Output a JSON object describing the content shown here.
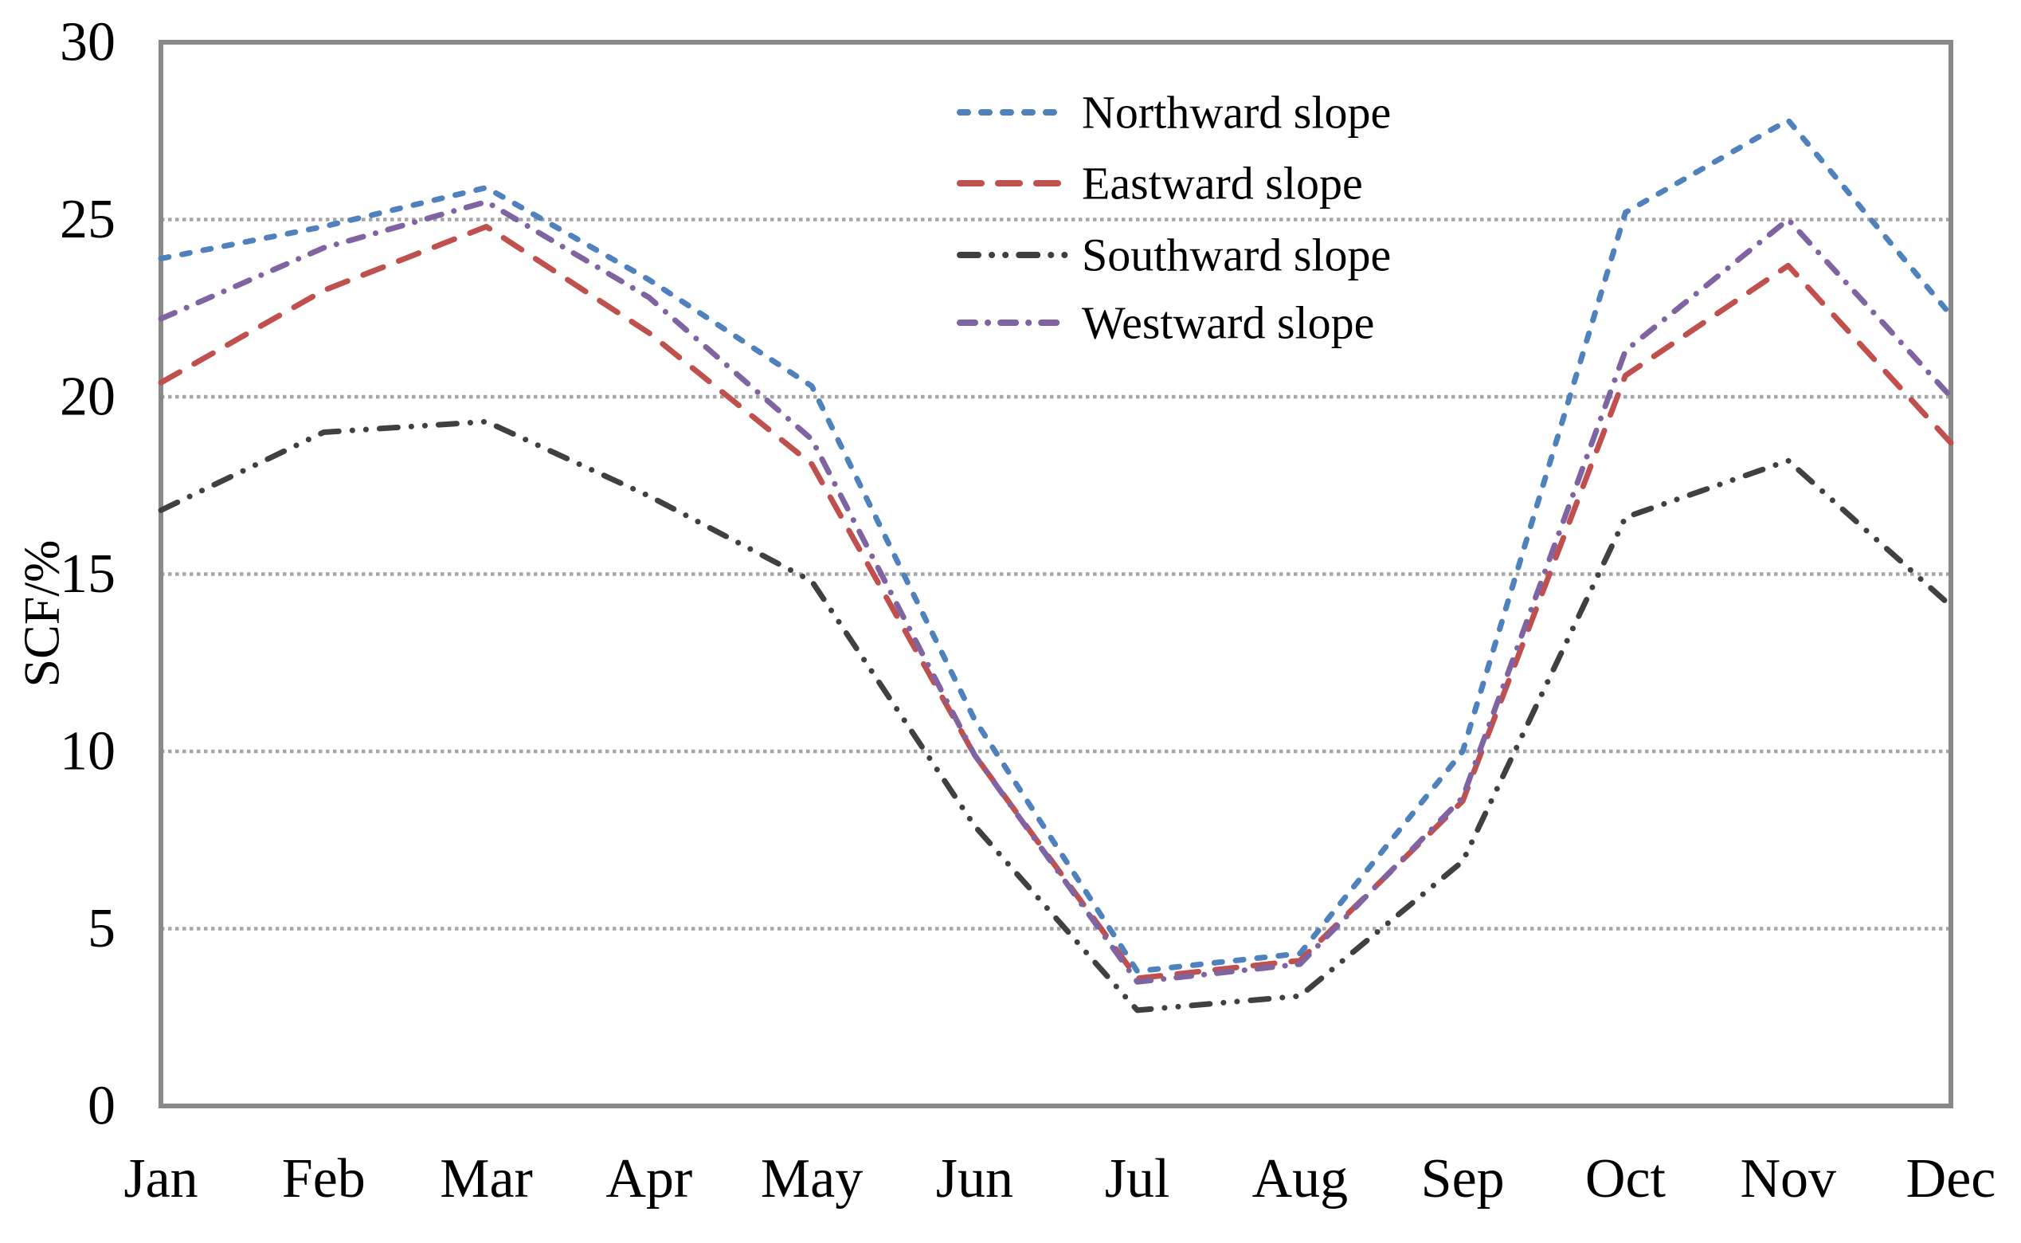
{
  "chart_data": {
    "type": "line",
    "title": "",
    "xlabel": "",
    "ylabel": "SCF/%",
    "ylim": [
      0,
      30
    ],
    "yticks": [
      0,
      5,
      10,
      15,
      20,
      25,
      30
    ],
    "gridlines": [
      5,
      10,
      15,
      20,
      25
    ],
    "grid": "horizontal dotted gridlines, solid gray plot border",
    "legend_position": "inside top-right",
    "categories": [
      "Jan",
      "Feb",
      "Mar",
      "Apr",
      "May",
      "Jun",
      "Jul",
      "Aug",
      "Sep",
      "Oct",
      "Nov",
      "Dec"
    ],
    "series": [
      {
        "name": "Northward slope",
        "color": "#4F81BD",
        "dash_style": "short-dash",
        "values": [
          23.9,
          24.8,
          25.9,
          23.3,
          20.3,
          10.9,
          3.8,
          4.3,
          10.0,
          25.2,
          27.8,
          22.3
        ]
      },
      {
        "name": "Eastward slope",
        "color": "#C0504D",
        "dash_style": "long-dash",
        "values": [
          20.4,
          23.0,
          24.8,
          21.8,
          18.1,
          9.9,
          3.6,
          4.1,
          8.6,
          20.6,
          23.7,
          18.7
        ]
      },
      {
        "name": "Southward slope",
        "color": "#404040",
        "dash_style": "dash-dot-dot",
        "values": [
          16.8,
          19.0,
          19.3,
          17.2,
          14.8,
          7.9,
          2.7,
          3.1,
          6.9,
          16.6,
          18.2,
          14.1
        ]
      },
      {
        "name": "Westward slope",
        "color": "#8064A2",
        "dash_style": "dash-dot",
        "values": [
          22.2,
          24.2,
          25.5,
          22.8,
          18.8,
          9.9,
          3.5,
          4.0,
          8.7,
          21.3,
          25.0,
          20.0
        ]
      }
    ],
    "colors": {
      "gridline": "#A6A6A6",
      "plot_border": "#898989",
      "text": "#000000",
      "background": "#FFFFFF"
    }
  }
}
